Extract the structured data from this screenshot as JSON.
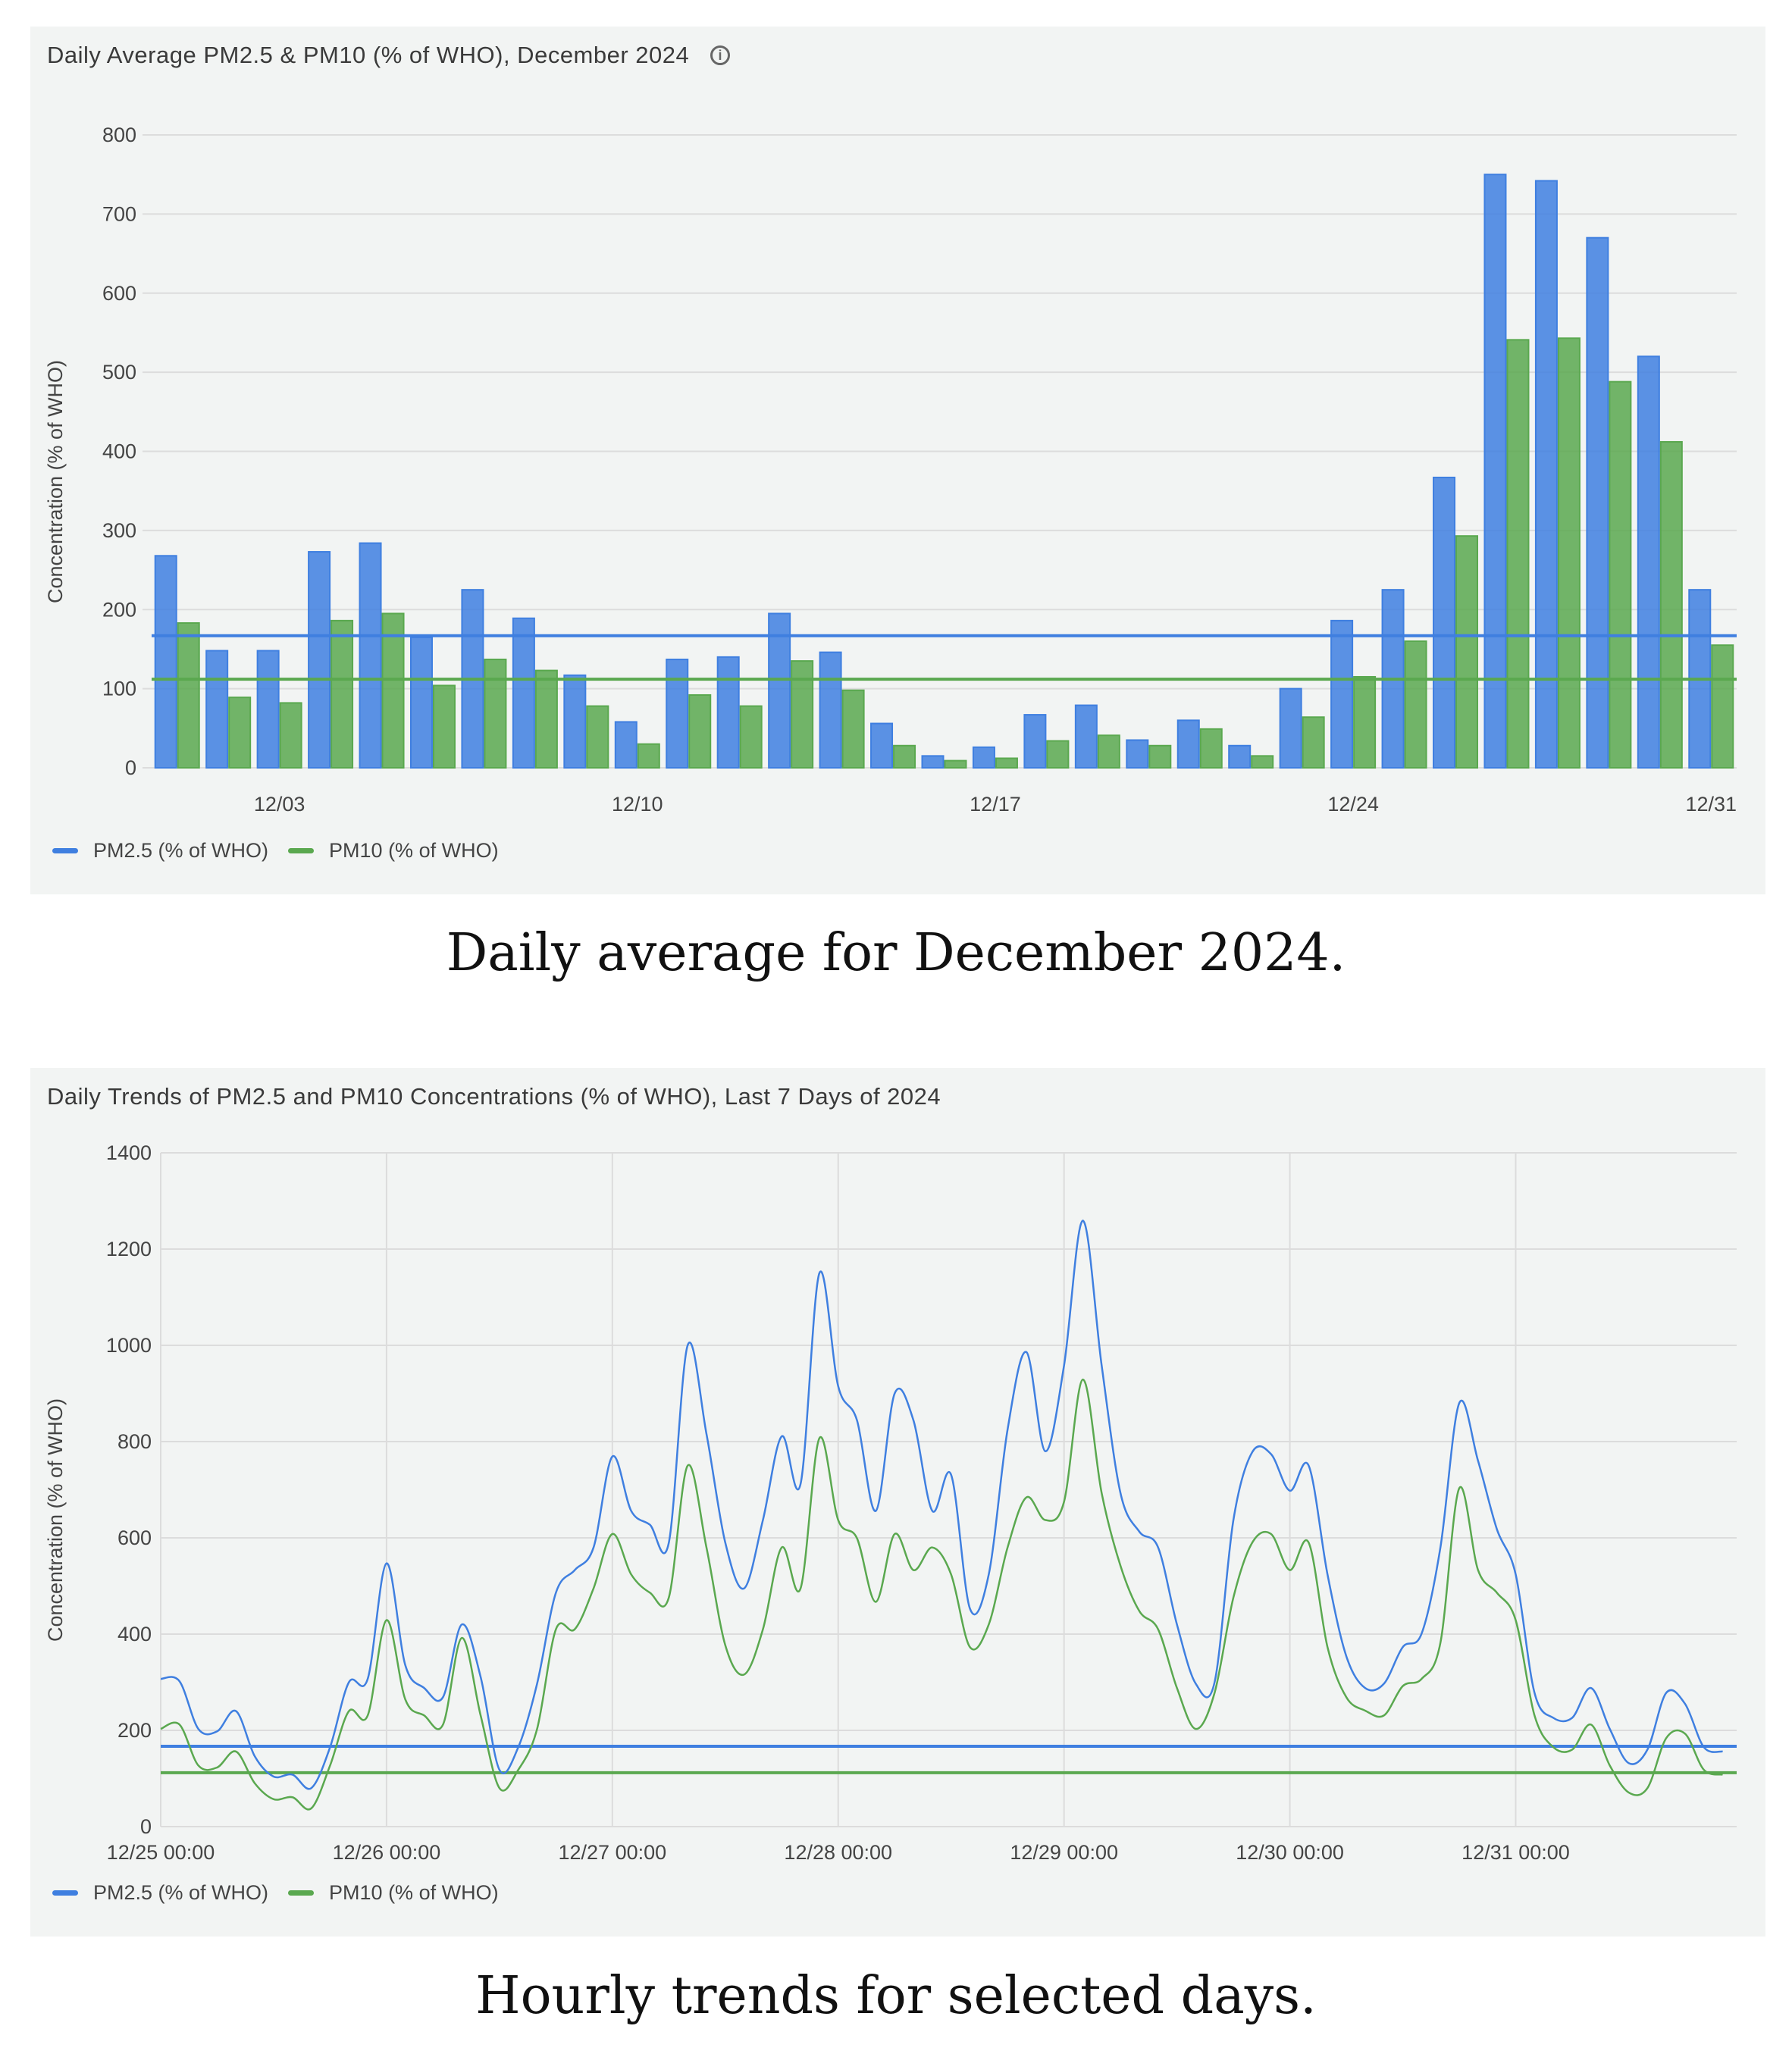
{
  "captions": {
    "daily": "Daily average for December 2024.",
    "hourly": "Hourly trends for selected days."
  },
  "colors": {
    "pm25": "#3f7fe0",
    "pm10": "#5aa84f",
    "grid": "#dcdcdc"
  },
  "icons": {
    "info": "info-icon"
  },
  "chart_data": [
    {
      "type": "bar",
      "title": "Daily Average PM2.5 & PM10 (% of WHO), December 2024",
      "xlabel": "",
      "ylabel": "Concentration (% of WHO)",
      "ylim": [
        0,
        800
      ],
      "yticks": [
        "0",
        "100",
        "200",
        "300",
        "400",
        "500",
        "600",
        "700",
        "800"
      ],
      "grid": true,
      "legend_position": "bottom-left",
      "categories": [
        "12/01",
        "12/02",
        "12/03",
        "12/04",
        "12/05",
        "12/06",
        "12/07",
        "12/08",
        "12/09",
        "12/10",
        "12/11",
        "12/12",
        "12/13",
        "12/14",
        "12/15",
        "12/16",
        "12/17",
        "12/18",
        "12/19",
        "12/20",
        "12/21",
        "12/22",
        "12/23",
        "12/24",
        "12/25",
        "12/26",
        "12/27",
        "12/28",
        "12/29",
        "12/30",
        "12/31"
      ],
      "xtick_labels": [
        {
          "index": 2,
          "label": "12/03"
        },
        {
          "index": 9,
          "label": "12/10"
        },
        {
          "index": 16,
          "label": "12/17"
        },
        {
          "index": 23,
          "label": "12/24"
        },
        {
          "index": 30,
          "label": "12/31"
        }
      ],
      "series": [
        {
          "name": "PM2.5 (% of WHO)",
          "values": [
            268,
            148,
            148,
            273,
            284,
            165,
            225,
            189,
            117,
            58,
            137,
            140,
            195,
            146,
            56,
            15,
            26,
            67,
            79,
            35,
            60,
            28,
            100,
            186,
            225,
            367,
            750,
            742,
            670,
            520,
            225
          ]
        },
        {
          "name": "PM10 (% of WHO)",
          "values": [
            183,
            89,
            82,
            186,
            195,
            104,
            137,
            123,
            78,
            30,
            92,
            78,
            135,
            98,
            28,
            9,
            12,
            34,
            41,
            28,
            49,
            15,
            64,
            115,
            160,
            293,
            541,
            543,
            488,
            412,
            155
          ]
        }
      ],
      "reference_lines": [
        {
          "series": "PM2.5 (% of WHO)",
          "value": 167
        },
        {
          "series": "PM10 (% of WHO)",
          "value": 112
        }
      ]
    },
    {
      "type": "line",
      "title": "Daily Trends of PM2.5 and PM10 Concentrations (% of WHO), Last 7 Days of 2024",
      "xlabel": "",
      "ylabel": "Concentration (% of WHO)",
      "ylim": [
        0,
        1400
      ],
      "yticks": [
        "0",
        "200",
        "400",
        "600",
        "800",
        "1000",
        "1200",
        "1400"
      ],
      "grid": true,
      "legend_position": "bottom-left",
      "x_unit": "hours since 12/25 00:00 (2-hour steps)",
      "xlim": [
        0,
        167
      ],
      "xtick_labels": [
        "12/25 00:00",
        "12/26 00:00",
        "12/27 00:00",
        "12/28 00:00",
        "12/29 00:00",
        "12/30 00:00",
        "12/31 00:00"
      ],
      "series": [
        {
          "name": "PM2.5 (% of WHO)",
          "values": [
            307,
            302,
            203,
            198,
            240,
            146,
            104,
            108,
            80,
            165,
            300,
            307,
            547,
            335,
            288,
            269,
            420,
            311,
            118,
            165,
            297,
            486,
            533,
            580,
            769,
            656,
            627,
            590,
            1000,
            816,
            590,
            495,
            637,
            811,
            712,
            1150,
            915,
            844,
            656,
            900,
            844,
            656,
            731,
            453,
            524,
            825,
            986,
            780,
            958,
            1259,
            958,
            693,
            613,
            580,
            420,
            297,
            300,
            637,
            778,
            774,
            698,
            750,
            524,
            354,
            288,
            297,
            373,
            401,
            580,
            880,
            760,
            618,
            524,
            278,
            226,
            226,
            288,
            203,
            132,
            160,
            278,
            255,
            165,
            156
          ]
        },
        {
          "name": "PM10 (% of WHO)",
          "values": [
            203,
            212,
            127,
            123,
            156,
            90,
            57,
            61,
            38,
            127,
            240,
            231,
            429,
            264,
            231,
            212,
            392,
            231,
            80,
            118,
            203,
            410,
            410,
            495,
            608,
            524,
            486,
            476,
            750,
            580,
            377,
            316,
            410,
            580,
            495,
            807,
            637,
            599,
            467,
            608,
            533,
            580,
            524,
            373,
            420,
            580,
            684,
            637,
            675,
            929,
            693,
            542,
            448,
            410,
            288,
            203,
            278,
            476,
            590,
            608,
            533,
            590,
            373,
            269,
            241,
            231,
            292,
            307,
            382,
            703,
            533,
            486,
            429,
            231,
            165,
            160,
            212,
            127,
            71,
            80,
            184,
            193,
            118,
            108
          ]
        }
      ],
      "reference_lines": [
        {
          "series": "PM2.5 (% of WHO)",
          "value": 167
        },
        {
          "series": "PM10 (% of WHO)",
          "value": 112
        }
      ]
    }
  ]
}
